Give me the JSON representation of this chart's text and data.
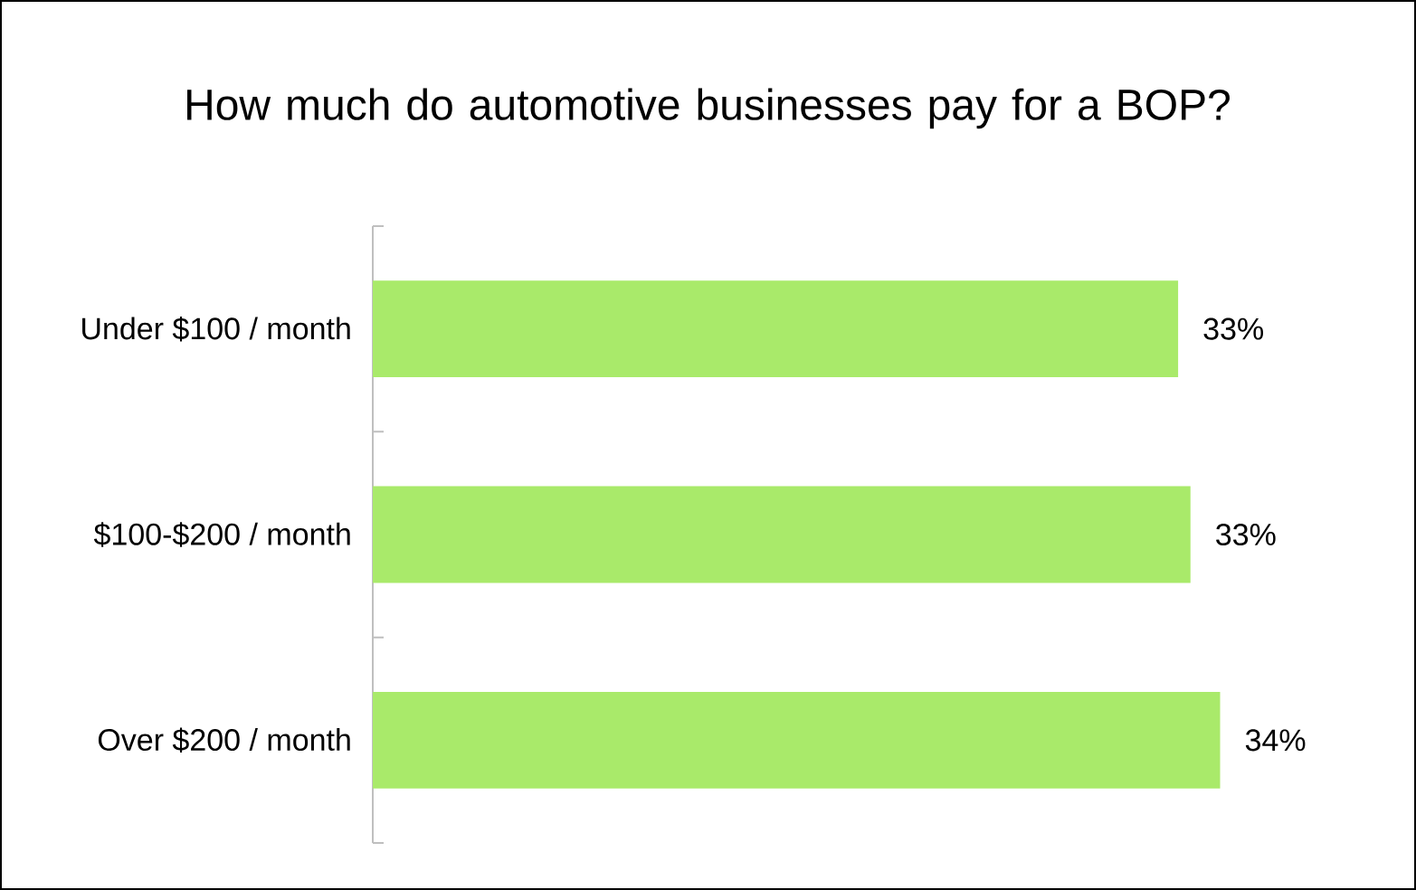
{
  "chart_data": {
    "type": "bar",
    "orientation": "horizontal",
    "title": "How much do automotive businesses pay for a BOP?",
    "categories": [
      "Under $100 / month",
      "$100-$200 / month",
      "Over $200 / month"
    ],
    "values": [
      32.6,
      33.1,
      34.3
    ],
    "value_labels": [
      "33%",
      "33%",
      "34%"
    ],
    "color": "#a9ea6a"
  }
}
